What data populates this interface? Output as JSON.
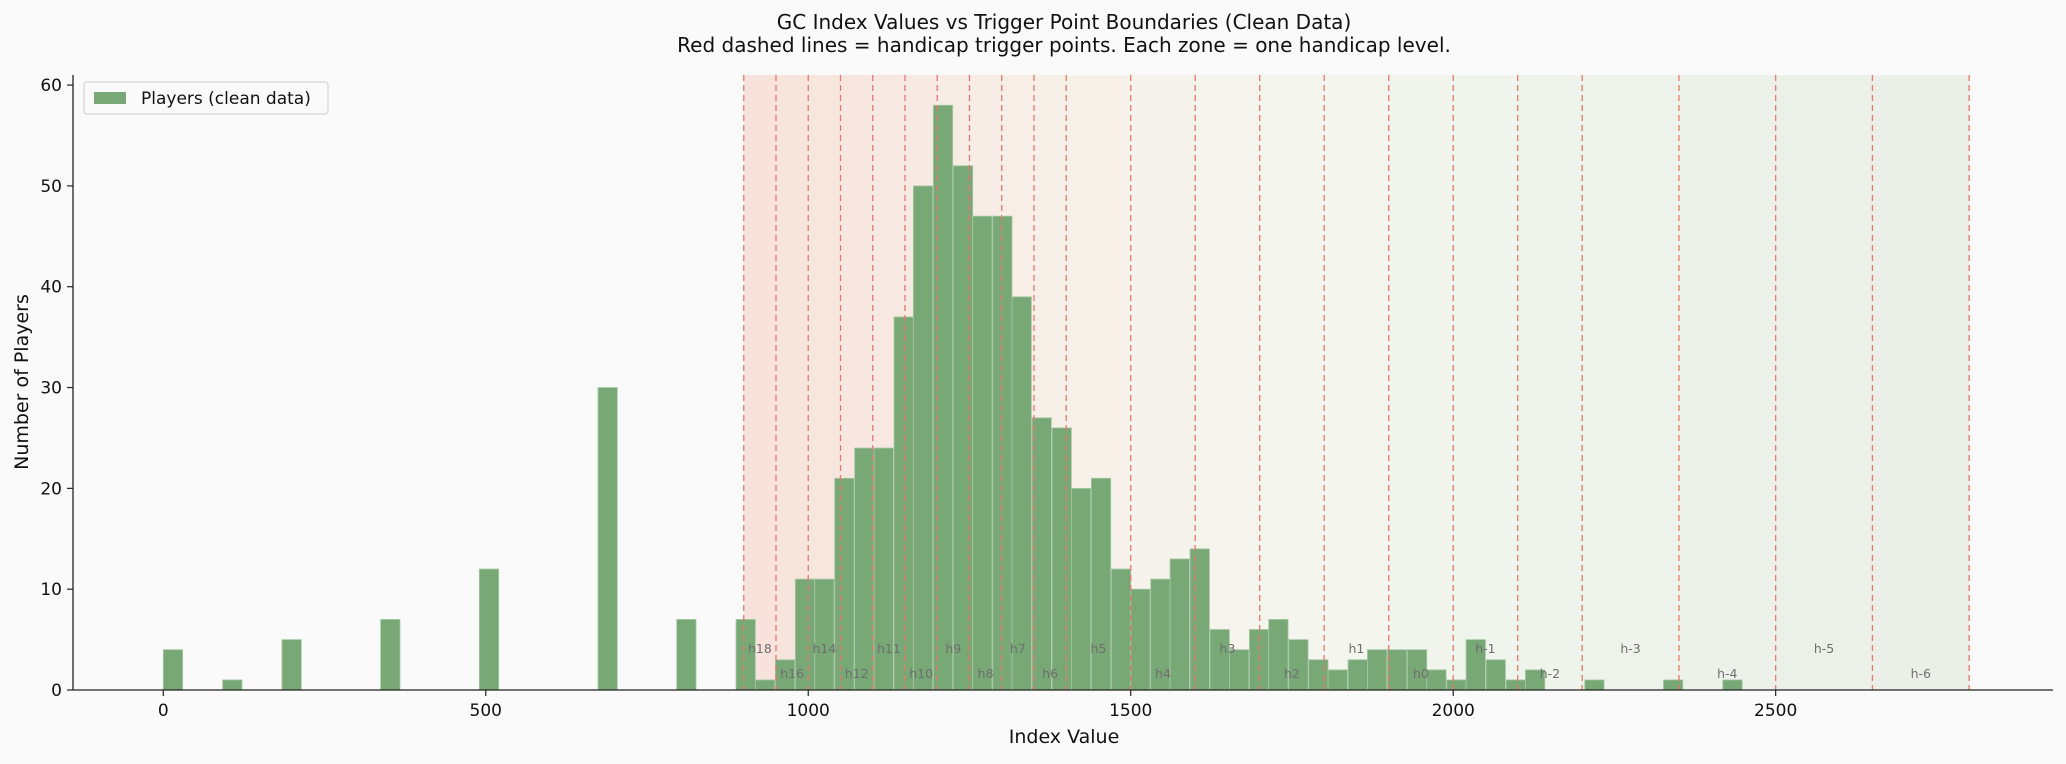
{
  "chart_data": {
    "type": "bar",
    "title": "GC Index Values vs Trigger Point Boundaries (Clean Data)",
    "subtitle": "Red dashed lines = handicap trigger points. Each zone = one handicap level.",
    "xlabel": "Index Value",
    "ylabel": "Number of Players",
    "xlim": [
      -140,
      2930
    ],
    "ylim": [
      0,
      61
    ],
    "xticks": [
      0,
      500,
      1000,
      1500,
      2000,
      2500
    ],
    "yticks": [
      0,
      10,
      20,
      30,
      40,
      50,
      60
    ],
    "grid": false,
    "legend": {
      "position": "top-left",
      "entries": [
        "Players (clean data)"
      ]
    },
    "bin_width": 30,
    "series": [
      {
        "name": "Players (clean data)",
        "color": "#79a877",
        "bins": [
          {
            "x": 15,
            "count": 4
          },
          {
            "x": 107,
            "count": 1
          },
          {
            "x": 199,
            "count": 5
          },
          {
            "x": 352,
            "count": 7
          },
          {
            "x": 505,
            "count": 12
          },
          {
            "x": 689,
            "count": 30
          },
          {
            "x": 811,
            "count": 7
          },
          {
            "x": 903,
            "count": 7
          },
          {
            "x": 933,
            "count": 1
          },
          {
            "x": 964,
            "count": 3
          },
          {
            "x": 995,
            "count": 11
          },
          {
            "x": 1025,
            "count": 11
          },
          {
            "x": 1056,
            "count": 21
          },
          {
            "x": 1087,
            "count": 24
          },
          {
            "x": 1117,
            "count": 24
          },
          {
            "x": 1148,
            "count": 37
          },
          {
            "x": 1178,
            "count": 50
          },
          {
            "x": 1209,
            "count": 58
          },
          {
            "x": 1240,
            "count": 52
          },
          {
            "x": 1270,
            "count": 47
          },
          {
            "x": 1301,
            "count": 47
          },
          {
            "x": 1331,
            "count": 39
          },
          {
            "x": 1362,
            "count": 27
          },
          {
            "x": 1393,
            "count": 26
          },
          {
            "x": 1423,
            "count": 20
          },
          {
            "x": 1454,
            "count": 21
          },
          {
            "x": 1485,
            "count": 12
          },
          {
            "x": 1515,
            "count": 10
          },
          {
            "x": 1546,
            "count": 11
          },
          {
            "x": 1576,
            "count": 13
          },
          {
            "x": 1607,
            "count": 14
          },
          {
            "x": 1638,
            "count": 6
          },
          {
            "x": 1668,
            "count": 4
          },
          {
            "x": 1699,
            "count": 6
          },
          {
            "x": 1729,
            "count": 7
          },
          {
            "x": 1760,
            "count": 5
          },
          {
            "x": 1791,
            "count": 3
          },
          {
            "x": 1821,
            "count": 2
          },
          {
            "x": 1852,
            "count": 3
          },
          {
            "x": 1882,
            "count": 4
          },
          {
            "x": 1913,
            "count": 4
          },
          {
            "x": 1944,
            "count": 4
          },
          {
            "x": 1974,
            "count": 2
          },
          {
            "x": 2005,
            "count": 1
          },
          {
            "x": 2035,
            "count": 5
          },
          {
            "x": 2066,
            "count": 3
          },
          {
            "x": 2097,
            "count": 1
          },
          {
            "x": 2127,
            "count": 2
          },
          {
            "x": 2219,
            "count": 1
          },
          {
            "x": 2341,
            "count": 1
          },
          {
            "x": 2433,
            "count": 1
          }
        ]
      }
    ],
    "trigger_points": [
      900,
      950,
      1000,
      1050,
      1100,
      1150,
      1200,
      1250,
      1300,
      1350,
      1400,
      1500,
      1600,
      1700,
      1800,
      1900,
      2000,
      2100,
      2200,
      2350,
      2500,
      2650,
      2800
    ],
    "trigger_line_color": "#e8776a",
    "zones": [
      {
        "label": "h18",
        "from": 900,
        "to": 950,
        "color": "#f7e3dc"
      },
      {
        "label": "h16",
        "from": 950,
        "to": 1000,
        "color": "#f7e4dd"
      },
      {
        "label": "h14",
        "from": 1000,
        "to": 1050,
        "color": "#f7e6de"
      },
      {
        "label": "h12",
        "from": 1050,
        "to": 1100,
        "color": "#f7e7e0"
      },
      {
        "label": "h11",
        "from": 1100,
        "to": 1150,
        "color": "#f7e9e1"
      },
      {
        "label": "h10",
        "from": 1150,
        "to": 1200,
        "color": "#f7eae3"
      },
      {
        "label": "h9",
        "from": 1200,
        "to": 1250,
        "color": "#f7ece4"
      },
      {
        "label": "h8",
        "from": 1250,
        "to": 1300,
        "color": "#f7ede6"
      },
      {
        "label": "h7",
        "from": 1300,
        "to": 1350,
        "color": "#f7efe7"
      },
      {
        "label": "h6",
        "from": 1350,
        "to": 1400,
        "color": "#f7f0e9"
      },
      {
        "label": "h5",
        "from": 1400,
        "to": 1500,
        "color": "#f7f1ea"
      },
      {
        "label": "h4",
        "from": 1500,
        "to": 1600,
        "color": "#f6f3ec"
      },
      {
        "label": "h3",
        "from": 1600,
        "to": 1700,
        "color": "#f5f4ed"
      },
      {
        "label": "h2",
        "from": 1700,
        "to": 1800,
        "color": "#f4f5ee"
      },
      {
        "label": "h1",
        "from": 1800,
        "to": 1900,
        "color": "#f3f5ee"
      },
      {
        "label": "h0",
        "from": 1900,
        "to": 2000,
        "color": "#f1f5ed"
      },
      {
        "label": "h-1",
        "from": 2000,
        "to": 2100,
        "color": "#eff4ec"
      },
      {
        "label": "h-2",
        "from": 2100,
        "to": 2200,
        "color": "#eef4eb"
      },
      {
        "label": "h-3",
        "from": 2200,
        "to": 2350,
        "color": "#edf3ea"
      },
      {
        "label": "h-4",
        "from": 2350,
        "to": 2500,
        "color": "#ecf2e9"
      },
      {
        "label": "h-5",
        "from": 2500,
        "to": 2650,
        "color": "#ebf1e8"
      },
      {
        "label": "h-6",
        "from": 2650,
        "to": 2800,
        "color": "#eaf0e7"
      }
    ]
  }
}
